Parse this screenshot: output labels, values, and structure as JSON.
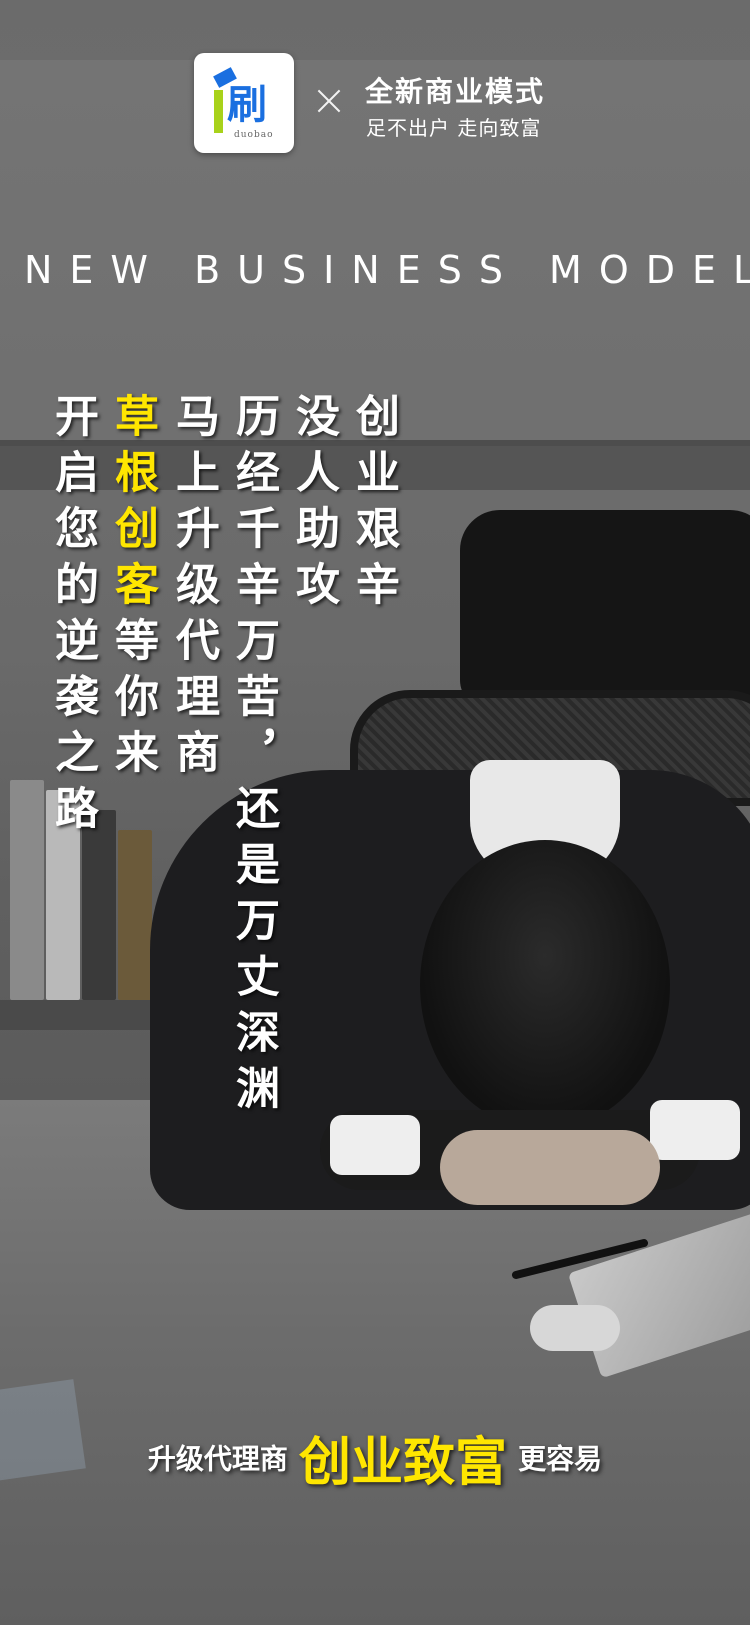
{
  "logo": {
    "char": "刷",
    "subtext": "duobao"
  },
  "header": {
    "title": "全新商业模式",
    "subtitle": "足不出户 走向致富"
  },
  "en_heading": "NEW BUSINESS MODEL",
  "columns": [
    {
      "text": "开启您的逆袭之路"
    },
    {
      "highlight": "草根创客",
      "text": "等你来"
    },
    {
      "text": "马上升级代理商"
    },
    {
      "text": "历经千辛万苦，还是万丈深渊"
    },
    {
      "text": "没人助攻"
    },
    {
      "text": "创业艰辛"
    }
  ],
  "bottom": {
    "prefix": "升级代理商",
    "highlight": "创业致富",
    "suffix": "更容易"
  },
  "colors": {
    "accent_yellow": "#ffe600",
    "logo_blue": "#1a6fe0",
    "logo_green": "#a8d21a"
  }
}
